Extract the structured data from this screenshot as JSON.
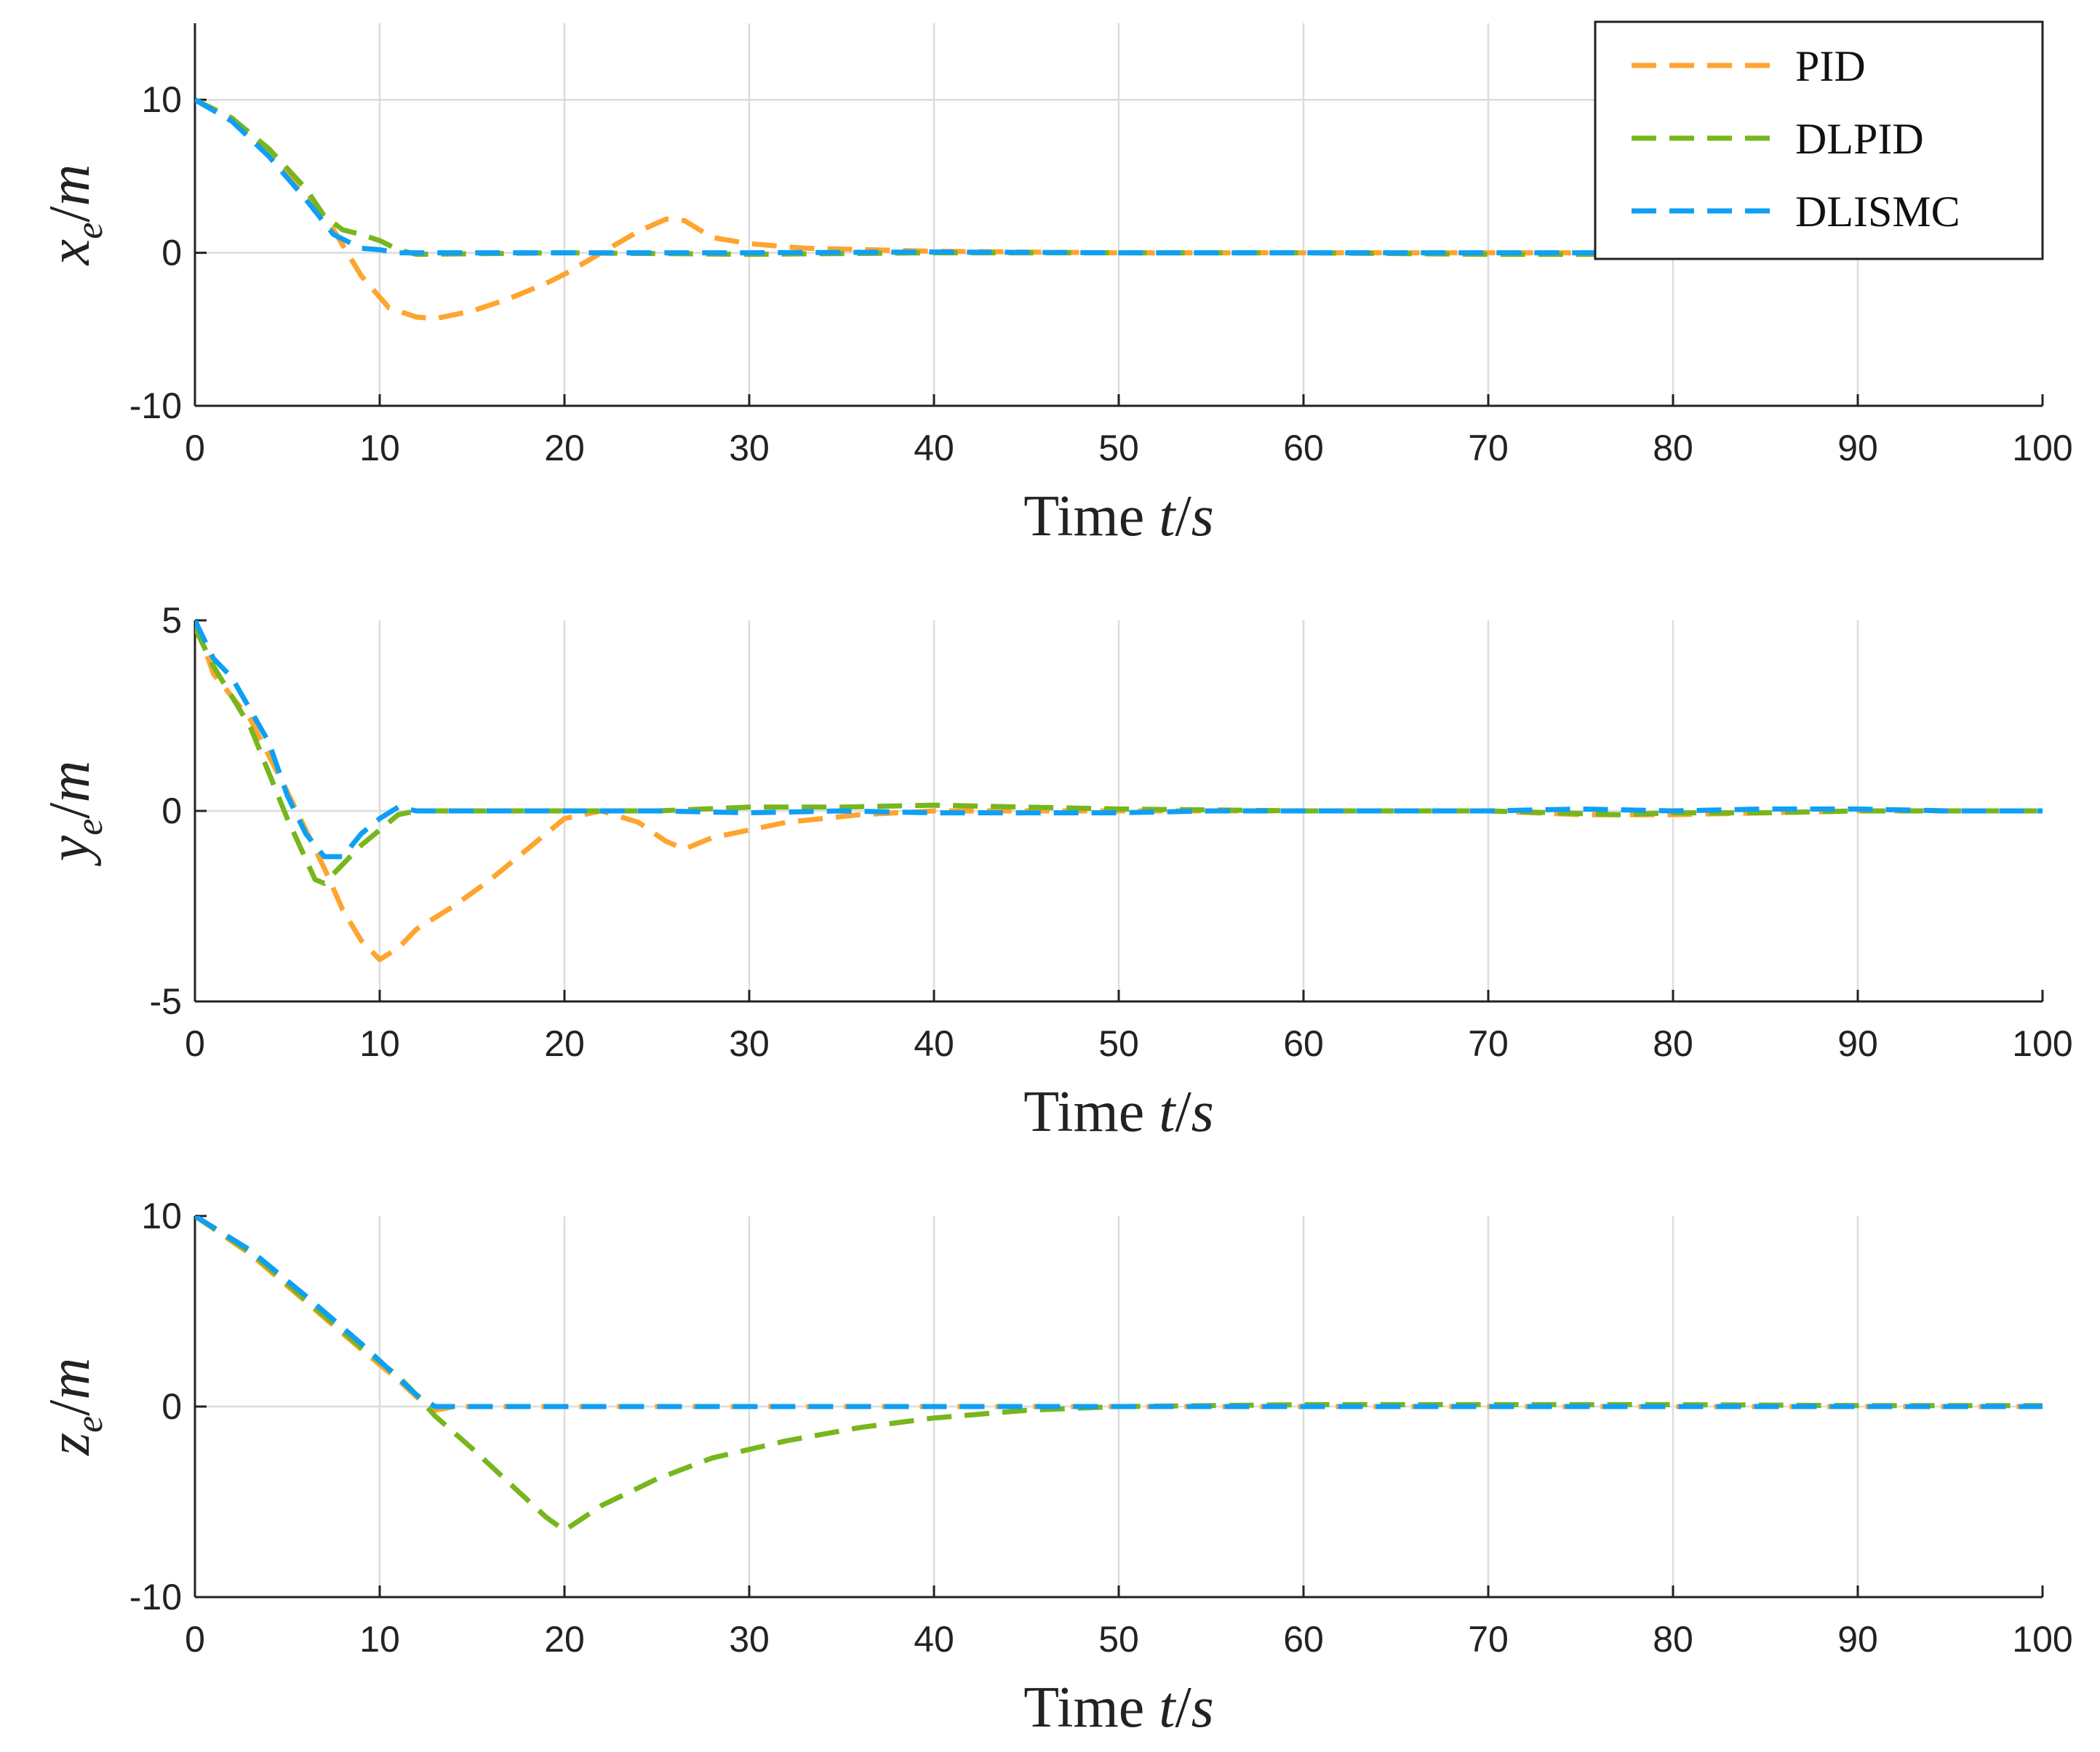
{
  "chart_data": [
    {
      "type": "line",
      "panel": "x",
      "ylabel": {
        "var": "x",
        "sub": "e",
        "unit": "m"
      },
      "xlabel": {
        "text": "Time ",
        "var": "t",
        "unit": "s"
      },
      "xlim": [
        0,
        100
      ],
      "ylim": [
        -10,
        15
      ],
      "xticks": [
        "0",
        "10",
        "20",
        "30",
        "40",
        "50",
        "60",
        "70",
        "80",
        "90",
        "100"
      ],
      "yticks": [
        "-10",
        "0",
        "10"
      ],
      "ytick_values": [
        -10,
        0,
        10
      ],
      "grid": true,
      "legend": "top-right",
      "series": [
        {
          "name": "PID",
          "color": "#FFA42F",
          "points": [
            [
              0,
              10
            ],
            [
              2,
              8.8
            ],
            [
              4,
              6.6
            ],
            [
              6,
              4
            ],
            [
              7.5,
              1.5
            ],
            [
              9,
              -1.5
            ],
            [
              10.5,
              -3.6
            ],
            [
              12,
              -4.2
            ],
            [
              13,
              -4.3
            ],
            [
              15,
              -3.8
            ],
            [
              17,
              -3
            ],
            [
              19,
              -2
            ],
            [
              20,
              -1.4
            ],
            [
              22,
              0
            ],
            [
              24,
              1.4
            ],
            [
              25.5,
              2.2
            ],
            [
              26.5,
              2.1
            ],
            [
              28,
              1
            ],
            [
              30,
              0.6
            ],
            [
              33,
              0.3
            ],
            [
              40,
              0.1
            ],
            [
              50,
              0
            ],
            [
              60,
              0
            ],
            [
              70,
              0
            ],
            [
              80,
              0
            ],
            [
              90,
              0
            ],
            [
              100,
              0
            ]
          ]
        },
        {
          "name": "DLPID",
          "color": "#77B61C",
          "points": [
            [
              0,
              10
            ],
            [
              2,
              8.8
            ],
            [
              4,
              6.8
            ],
            [
              6,
              4.2
            ],
            [
              7,
              2.4
            ],
            [
              8,
              1.5
            ],
            [
              9,
              1.2
            ],
            [
              10,
              0.8
            ],
            [
              11,
              0.2
            ],
            [
              12,
              -0.1
            ],
            [
              20,
              0
            ],
            [
              30,
              -0.1
            ],
            [
              40,
              0
            ],
            [
              50,
              0
            ],
            [
              60,
              0
            ],
            [
              70,
              -0.1
            ],
            [
              80,
              -0.1
            ],
            [
              90,
              -0.1
            ],
            [
              100,
              -0.1
            ]
          ]
        },
        {
          "name": "DLISMC",
          "color": "#0F9FF4",
          "points": [
            [
              0,
              10
            ],
            [
              2,
              8.6
            ],
            [
              4,
              6.3
            ],
            [
              6,
              3.5
            ],
            [
              7.5,
              1.2
            ],
            [
              9,
              0.3
            ],
            [
              10,
              0.2
            ],
            [
              11,
              0
            ],
            [
              12,
              0
            ],
            [
              20,
              0
            ],
            [
              30,
              0
            ],
            [
              40,
              0.05
            ],
            [
              50,
              0
            ],
            [
              60,
              0
            ],
            [
              70,
              0
            ],
            [
              80,
              0
            ],
            [
              90,
              0.05
            ],
            [
              100,
              0.05
            ]
          ]
        }
      ]
    },
    {
      "type": "line",
      "panel": "y",
      "ylabel": {
        "var": "y",
        "sub": "e",
        "unit": "m"
      },
      "xlabel": {
        "text": "Time ",
        "var": "t",
        "unit": "s"
      },
      "xlim": [
        0,
        100
      ],
      "ylim": [
        -5,
        5
      ],
      "xticks": [
        "0",
        "10",
        "20",
        "30",
        "40",
        "50",
        "60",
        "70",
        "80",
        "90",
        "100"
      ],
      "yticks": [
        "-5",
        "0",
        "5"
      ],
      "ytick_values": [
        -5,
        0,
        5
      ],
      "grid": true,
      "series": [
        {
          "name": "PID",
          "color": "#FFA42F",
          "points": [
            [
              0,
              5
            ],
            [
              1,
              3.6
            ],
            [
              3,
              2.4
            ],
            [
              5,
              0.5
            ],
            [
              7,
              -1.5
            ],
            [
              8,
              -2.6
            ],
            [
              9,
              -3.4
            ],
            [
              10,
              -3.9
            ],
            [
              11,
              -3.6
            ],
            [
              12,
              -3.1
            ],
            [
              14,
              -2.5
            ],
            [
              16,
              -1.8
            ],
            [
              18,
              -1
            ],
            [
              20,
              -0.2
            ],
            [
              22,
              0
            ],
            [
              24,
              -0.3
            ],
            [
              25.5,
              -0.8
            ],
            [
              26.5,
              -1
            ],
            [
              28,
              -0.7
            ],
            [
              30,
              -0.5
            ],
            [
              32,
              -0.3
            ],
            [
              36,
              -0.1
            ],
            [
              40,
              0
            ],
            [
              50,
              0
            ],
            [
              60,
              0
            ],
            [
              70,
              0
            ],
            [
              75,
              -0.1
            ],
            [
              78,
              -0.1
            ],
            [
              80,
              -0.1
            ],
            [
              90,
              0
            ],
            [
              100,
              0
            ]
          ]
        },
        {
          "name": "DLPID",
          "color": "#77B61C",
          "points": [
            [
              0,
              4.8
            ],
            [
              1,
              3.8
            ],
            [
              3,
              2.2
            ],
            [
              5,
              -0.2
            ],
            [
              6.5,
              -1.8
            ],
            [
              7,
              -1.9
            ],
            [
              8,
              -1.4
            ],
            [
              9,
              -0.9
            ],
            [
              10,
              -0.5
            ],
            [
              11,
              -0.1
            ],
            [
              12,
              0
            ],
            [
              15,
              0
            ],
            [
              20,
              0
            ],
            [
              25,
              0
            ],
            [
              30,
              0.1
            ],
            [
              35,
              0.1
            ],
            [
              40,
              0.15
            ],
            [
              45,
              0.1
            ],
            [
              50,
              0.05
            ],
            [
              60,
              0
            ],
            [
              70,
              0
            ],
            [
              77,
              -0.1
            ],
            [
              80,
              -0.05
            ],
            [
              85,
              -0.05
            ],
            [
              90,
              0
            ],
            [
              100,
              0
            ]
          ]
        },
        {
          "name": "DLISMC",
          "color": "#0F9FF4",
          "points": [
            [
              0,
              5
            ],
            [
              1,
              4
            ],
            [
              2,
              3.5
            ],
            [
              4,
              1.8
            ],
            [
              5,
              0.4
            ],
            [
              6,
              -0.6
            ],
            [
              7,
              -1.2
            ],
            [
              8,
              -1.2
            ],
            [
              9,
              -0.6
            ],
            [
              10,
              -0.2
            ],
            [
              11,
              0.1
            ],
            [
              12,
              0
            ],
            [
              15,
              0
            ],
            [
              20,
              0
            ],
            [
              25,
              0
            ],
            [
              30,
              -0.05
            ],
            [
              35,
              0
            ],
            [
              40,
              -0.05
            ],
            [
              45,
              -0.05
            ],
            [
              50,
              -0.05
            ],
            [
              55,
              0
            ],
            [
              60,
              0
            ],
            [
              65,
              0
            ],
            [
              70,
              0
            ],
            [
              75,
              0.05
            ],
            [
              80,
              0
            ],
            [
              85,
              0.05
            ],
            [
              90,
              0.05
            ],
            [
              95,
              0
            ],
            [
              100,
              0
            ]
          ]
        }
      ]
    },
    {
      "type": "line",
      "panel": "z",
      "ylabel": {
        "var": "z",
        "sub": "e",
        "unit": "m"
      },
      "xlabel": {
        "text": "Time ",
        "var": "t",
        "unit": "s"
      },
      "xlim": [
        0,
        100
      ],
      "ylim": [
        -10,
        10
      ],
      "xticks": [
        "0",
        "10",
        "20",
        "30",
        "40",
        "50",
        "60",
        "70",
        "80",
        "90",
        "100"
      ],
      "yticks": [
        "-10",
        "0",
        "10"
      ],
      "ytick_values": [
        -10,
        0,
        10
      ],
      "grid": true,
      "series": [
        {
          "name": "PID",
          "color": "#FFA42F",
          "points": [
            [
              0,
              10
            ],
            [
              3,
              8
            ],
            [
              6,
              5.5
            ],
            [
              9,
              3
            ],
            [
              11,
              1.4
            ],
            [
              12,
              0.5
            ],
            [
              13,
              -0.2
            ],
            [
              14,
              0
            ],
            [
              20,
              0
            ],
            [
              30,
              0
            ],
            [
              40,
              0
            ],
            [
              50,
              0
            ],
            [
              60,
              0
            ],
            [
              70,
              0
            ],
            [
              80,
              0
            ],
            [
              90,
              0
            ],
            [
              100,
              0
            ]
          ]
        },
        {
          "name": "DLPID",
          "color": "#77B61C",
          "points": [
            [
              0,
              10
            ],
            [
              3,
              8.1
            ],
            [
              6,
              5.6
            ],
            [
              9,
              3.1
            ],
            [
              11,
              1.6
            ],
            [
              12,
              0.6
            ],
            [
              13,
              -0.5
            ],
            [
              15,
              -2.2
            ],
            [
              17,
              -4
            ],
            [
              19,
              -5.8
            ],
            [
              20,
              -6.5
            ],
            [
              22,
              -5.2
            ],
            [
              25,
              -3.8
            ],
            [
              28,
              -2.7
            ],
            [
              32,
              -1.8
            ],
            [
              36,
              -1.1
            ],
            [
              40,
              -0.6
            ],
            [
              45,
              -0.2
            ],
            [
              50,
              0
            ],
            [
              55,
              0.05
            ],
            [
              60,
              0.1
            ],
            [
              65,
              0.1
            ],
            [
              70,
              0.1
            ],
            [
              75,
              0.1
            ],
            [
              80,
              0.1
            ],
            [
              90,
              0.05
            ],
            [
              100,
              0.05
            ]
          ]
        },
        {
          "name": "DLISMC",
          "color": "#0F9FF4",
          "points": [
            [
              0,
              10
            ],
            [
              3,
              8.2
            ],
            [
              6,
              5.8
            ],
            [
              9,
              3.3
            ],
            [
              11,
              1.5
            ],
            [
              12,
              0.6
            ],
            [
              13,
              0
            ],
            [
              14,
              0
            ],
            [
              20,
              0
            ],
            [
              30,
              0
            ],
            [
              40,
              0
            ],
            [
              50,
              0
            ],
            [
              60,
              0
            ],
            [
              70,
              0
            ],
            [
              80,
              0
            ],
            [
              90,
              0
            ],
            [
              100,
              0
            ]
          ]
        }
      ]
    }
  ]
}
